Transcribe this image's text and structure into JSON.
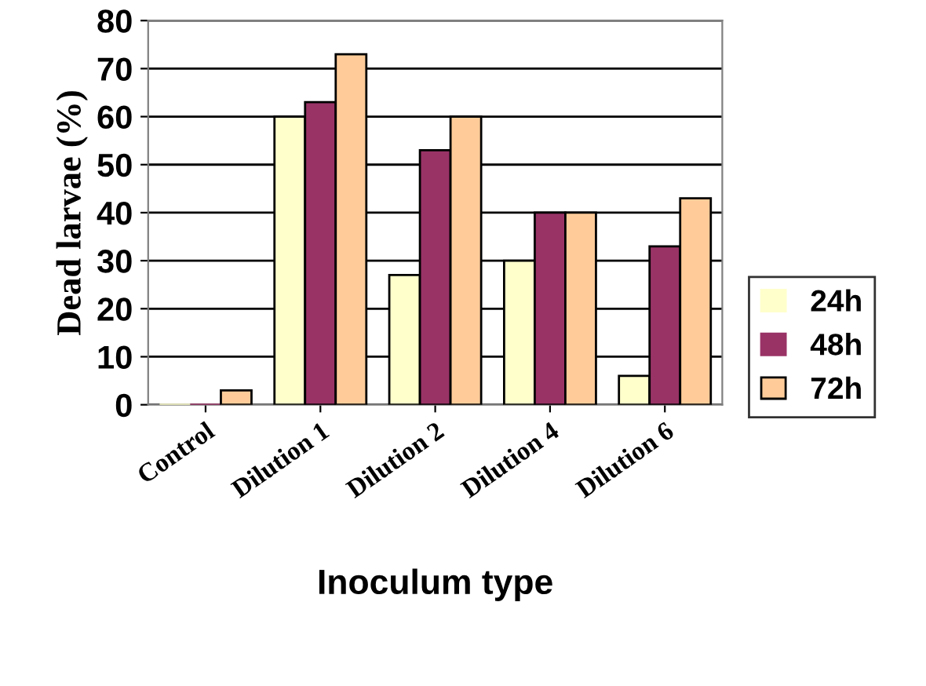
{
  "chart_data": {
    "type": "bar",
    "xlabel": "Inoculum type",
    "ylabel": "Dead larvae (%)",
    "categories": [
      "Control",
      "Dilution 1",
      "Dilution 2",
      "Dilution 4",
      "Dilution 6"
    ],
    "series": [
      {
        "name": "24h",
        "color": "#ffffcc",
        "values": [
          0,
          60,
          27,
          30,
          6
        ]
      },
      {
        "name": "48h",
        "color": "#993366",
        "values": [
          0,
          63,
          53,
          40,
          33
        ]
      },
      {
        "name": "72h",
        "color": "#ffcc99",
        "values": [
          3,
          73,
          60,
          40,
          43
        ]
      }
    ],
    "ylim": [
      0,
      80
    ],
    "yticks": [
      0,
      10,
      20,
      30,
      40,
      50,
      60,
      70,
      80
    ],
    "grid": "y",
    "legend": "right"
  }
}
